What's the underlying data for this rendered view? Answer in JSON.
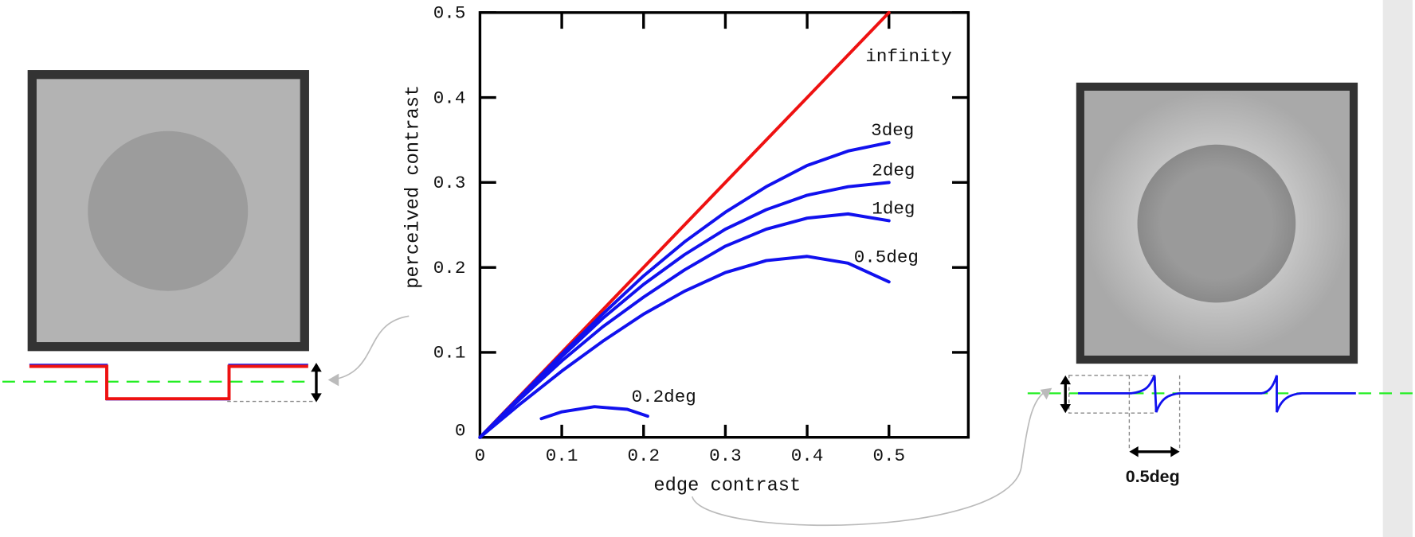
{
  "chart_data": {
    "type": "line",
    "x_label": "edge contrast",
    "y_label": "perceived contrast",
    "xlim": [
      0,
      0.597
    ],
    "ylim": [
      0,
      0.5
    ],
    "xticks": [
      0,
      0.1,
      0.2,
      0.3,
      0.4,
      0.5
    ],
    "yticks": [
      0,
      0.1,
      0.2,
      0.3,
      0.4,
      0.5
    ],
    "grid": false,
    "series": [
      {
        "name": "infinity",
        "color": "#ee1111",
        "x": [
          0,
          0.5
        ],
        "values": [
          0,
          0.5
        ]
      },
      {
        "name": "3deg",
        "color": "#1111ee",
        "x": [
          0,
          0.05,
          0.1,
          0.15,
          0.2,
          0.25,
          0.3,
          0.35,
          0.4,
          0.45,
          0.5
        ],
        "values": [
          0,
          0.049,
          0.098,
          0.145,
          0.19,
          0.23,
          0.265,
          0.295,
          0.32,
          0.337,
          0.347
        ]
      },
      {
        "name": "2deg",
        "color": "#1111ee",
        "x": [
          0,
          0.05,
          0.1,
          0.15,
          0.2,
          0.25,
          0.3,
          0.35,
          0.4,
          0.45,
          0.5
        ],
        "values": [
          0,
          0.048,
          0.095,
          0.14,
          0.18,
          0.215,
          0.245,
          0.268,
          0.285,
          0.295,
          0.3
        ]
      },
      {
        "name": "1deg",
        "color": "#1111ee",
        "x": [
          0,
          0.05,
          0.1,
          0.15,
          0.2,
          0.25,
          0.3,
          0.35,
          0.4,
          0.45,
          0.5
        ],
        "values": [
          0,
          0.046,
          0.09,
          0.13,
          0.165,
          0.197,
          0.225,
          0.245,
          0.258,
          0.263,
          0.255
        ]
      },
      {
        "name": "0.5deg",
        "color": "#1111ee",
        "x": [
          0,
          0.05,
          0.1,
          0.15,
          0.2,
          0.25,
          0.3,
          0.35,
          0.4,
          0.45,
          0.5
        ],
        "values": [
          0,
          0.04,
          0.078,
          0.113,
          0.145,
          0.172,
          0.194,
          0.208,
          0.213,
          0.205,
          0.183
        ]
      },
      {
        "name": "0.2deg",
        "color": "#1111ee",
        "x": [
          0.075,
          0.1,
          0.14,
          0.18,
          0.205
        ],
        "values": [
          0.022,
          0.03,
          0.036,
          0.033,
          0.025
        ]
      }
    ]
  },
  "figure": {
    "width_label": "0.5deg"
  }
}
